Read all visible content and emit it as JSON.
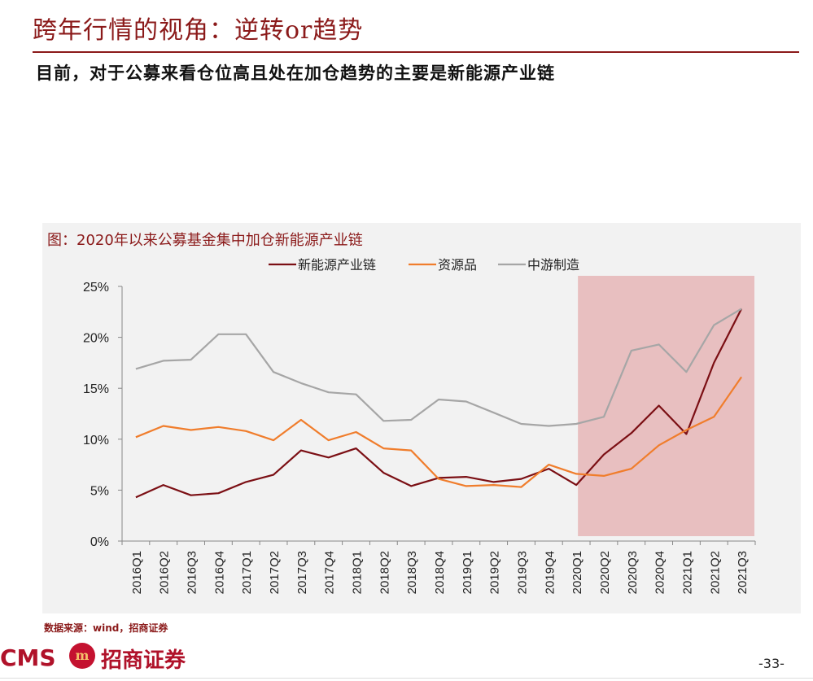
{
  "slide": {
    "title": "跨年行情的视角：逆转or趋势",
    "subtitle": "目前，对于公募来看仓位高且处在加仓趋势的主要是新能源产业链",
    "source": "数据来源：wind，招商证券",
    "page_number": "-33-"
  },
  "logo": {
    "latin": "CMS",
    "seal": "m",
    "chinese": "招商证券"
  },
  "colors": {
    "brand": "#8b1a1a",
    "highlight_band": "#e8bfc0",
    "series": [
      "#7b0f14",
      "#f07d2c",
      "#a6a6a6"
    ]
  },
  "chart_data": {
    "type": "line",
    "title": "图：2020年以来公募基金集中加仓新能源产业链",
    "categories": [
      "2016Q1",
      "2016Q2",
      "2016Q3",
      "2016Q4",
      "2017Q1",
      "2017Q2",
      "2017Q3",
      "2017Q4",
      "2018Q1",
      "2018Q2",
      "2018Q3",
      "2018Q4",
      "2019Q1",
      "2019Q2",
      "2019Q3",
      "2019Q4",
      "2020Q1",
      "2020Q2",
      "2020Q3",
      "2020Q4",
      "2021Q1",
      "2021Q2",
      "2021Q3"
    ],
    "series": [
      {
        "name": "新能源产业链",
        "values": [
          4.3,
          5.5,
          4.5,
          4.7,
          5.8,
          6.5,
          8.9,
          8.2,
          9.1,
          6.7,
          5.4,
          6.2,
          6.3,
          5.8,
          6.1,
          7.1,
          5.5,
          8.5,
          10.6,
          13.3,
          10.5,
          17.5,
          22.8
        ]
      },
      {
        "name": "资源品",
        "values": [
          10.2,
          11.3,
          10.9,
          11.2,
          10.8,
          9.9,
          11.9,
          9.9,
          10.7,
          9.1,
          8.9,
          6.1,
          5.4,
          5.5,
          5.3,
          7.5,
          6.6,
          6.4,
          7.1,
          9.4,
          10.9,
          12.2,
          16.1
        ]
      },
      {
        "name": "中游制造",
        "values": [
          16.9,
          17.7,
          17.8,
          20.3,
          20.3,
          16.6,
          15.5,
          14.6,
          14.4,
          11.8,
          11.9,
          13.9,
          13.7,
          12.6,
          11.5,
          11.3,
          11.5,
          12.2,
          18.7,
          19.3,
          16.6,
          21.2,
          22.8
        ]
      }
    ],
    "y_ticks": [
      "0%",
      "5%",
      "10%",
      "15%",
      "20%",
      "25%"
    ],
    "ylim": [
      0,
      25
    ],
    "highlight_range": [
      "2020Q1",
      "2021Q3"
    ],
    "legend_position": "top-center",
    "grid": false
  }
}
